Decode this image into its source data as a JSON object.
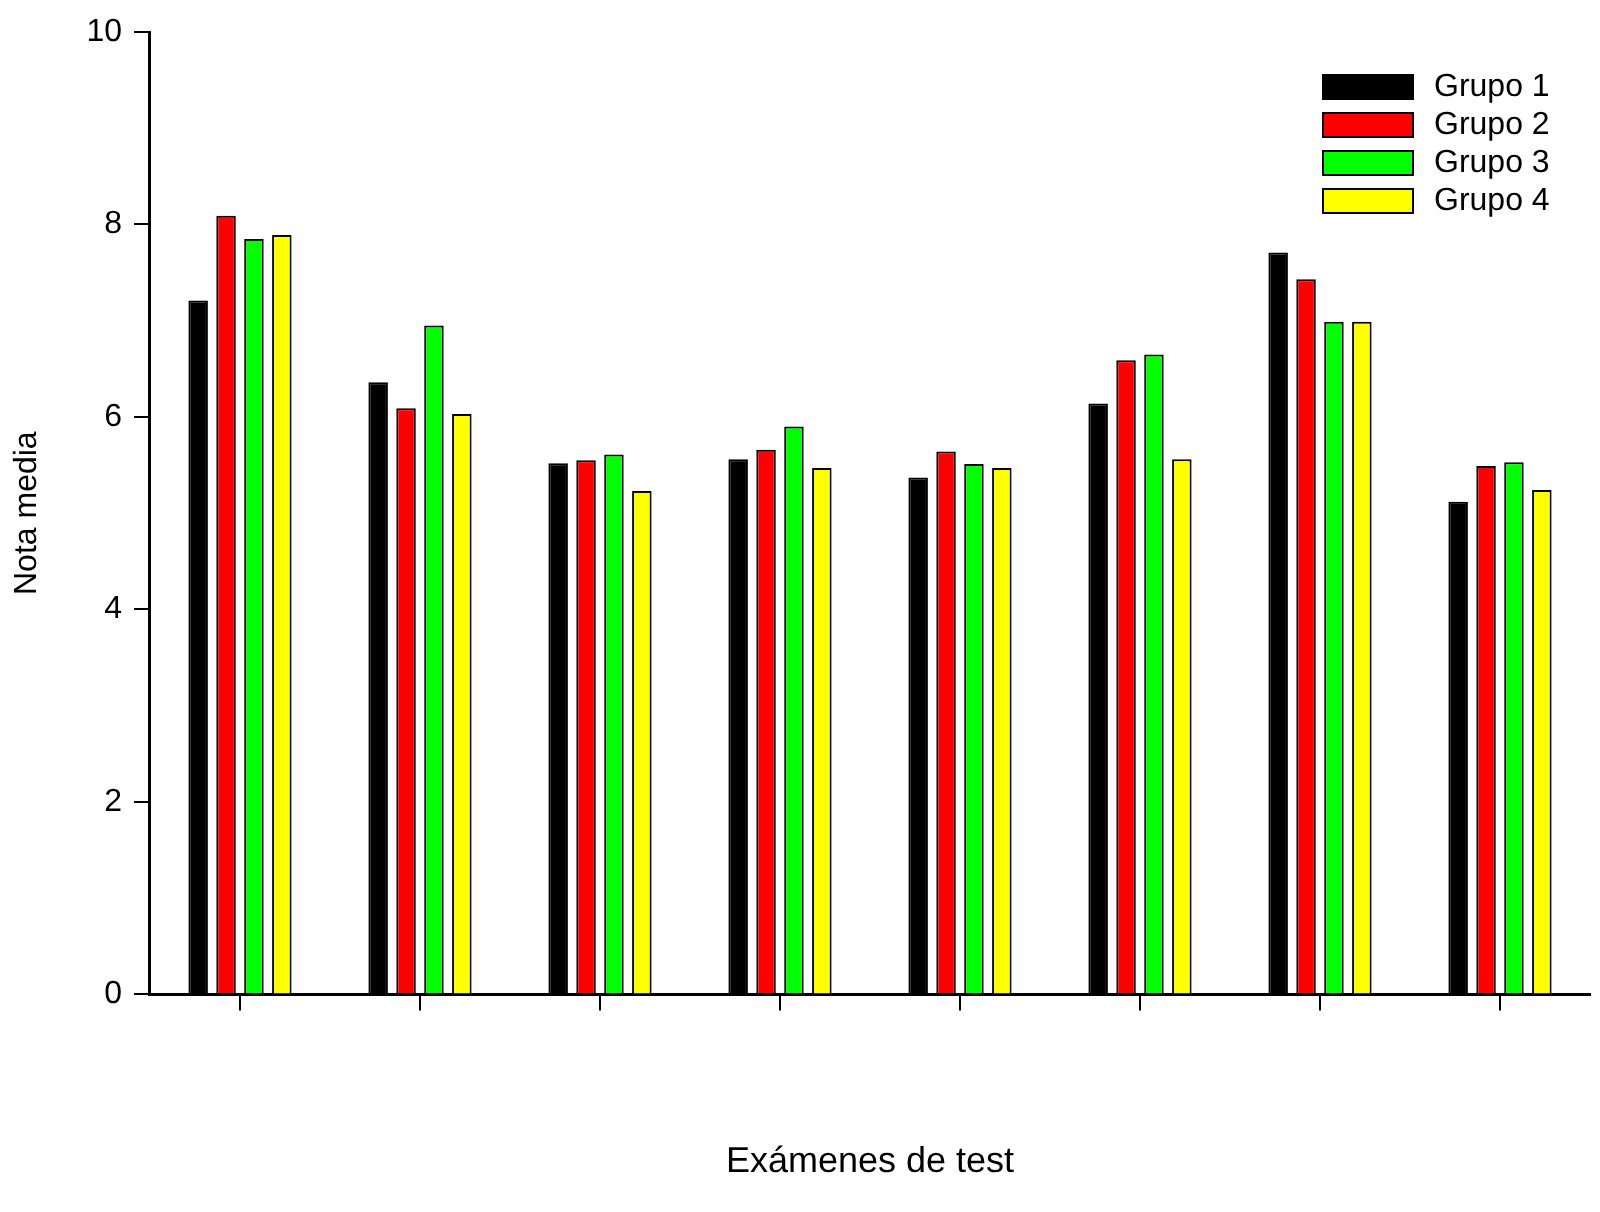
{
  "chart_data": {
    "type": "bar",
    "xlabel": "Exámenes de test",
    "ylabel": "Nota media",
    "categories": [
      null,
      null,
      null,
      null,
      null,
      null,
      null,
      null
    ],
    "series": [
      {
        "name": "Grupo 1",
        "color": "#000000",
        "values": [
          7.21,
          6.36,
          5.52,
          5.56,
          5.37,
          6.14,
          7.71,
          5.12
        ]
      },
      {
        "name": "Grupo 2",
        "color": "#ff0000",
        "values": [
          8.09,
          6.09,
          5.55,
          5.66,
          5.64,
          6.59,
          7.43,
          5.49
        ]
      },
      {
        "name": "Grupo 3",
        "color": "#00ff00",
        "values": [
          7.85,
          6.95,
          5.61,
          5.9,
          5.51,
          6.65,
          6.99,
          5.53
        ]
      },
      {
        "name": "Grupo 4",
        "color": "#ffff00",
        "values": [
          7.89,
          6.03,
          5.23,
          5.47,
          5.47,
          5.56,
          6.99,
          5.24
        ]
      }
    ],
    "ylim": [
      0,
      10
    ],
    "yticks": [
      0,
      2,
      4,
      6,
      8,
      10
    ],
    "grid": false,
    "legend": "top right"
  }
}
